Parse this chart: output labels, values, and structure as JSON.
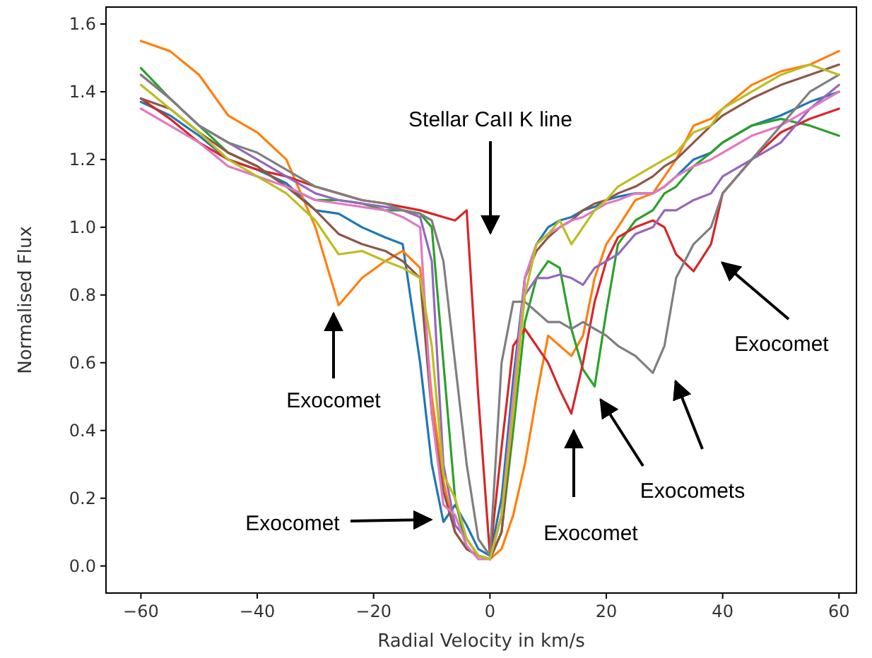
{
  "chart_data": {
    "type": "line",
    "xlabel": "Radial Velocity in km/s",
    "ylabel": "Normalised Flux",
    "annotations": [
      "Stellar CaII K line",
      "Exocomet",
      "Exocomet",
      "Exocomet",
      "Exocomets",
      "Exocomet"
    ],
    "x": [
      -60,
      -55,
      -50,
      -45,
      -40,
      -35,
      -30,
      -26,
      -22,
      -18,
      -15,
      -12,
      -10,
      -8,
      -6,
      -4,
      -2,
      0,
      2,
      4,
      6,
      8,
      10,
      12,
      14,
      16,
      18,
      20,
      22,
      25,
      28,
      30,
      32,
      35,
      38,
      40,
      45,
      50,
      55,
      60
    ],
    "xlim": [
      -66,
      63
    ],
    "xticks": [
      -60,
      -40,
      -20,
      0,
      20,
      40,
      60
    ],
    "ylim": [
      -0.08,
      1.65
    ],
    "yticks": [
      {
        "value": 0,
        "label": "0.0"
      },
      {
        "value": 0.2,
        "label": "0.2"
      },
      {
        "value": 0.4,
        "label": "0.4"
      },
      {
        "value": 0.6,
        "label": "0.6"
      },
      {
        "value": 0.8,
        "label": "0.8"
      },
      {
        "value": 1.0,
        "label": "1.0"
      },
      {
        "value": 1.2,
        "label": "1.2"
      },
      {
        "value": 1.4,
        "label": "1.4"
      },
      {
        "value": 1.6,
        "label": "1.6"
      }
    ],
    "grid": false,
    "marker": "none",
    "line_style": "solid",
    "series": [
      {
        "color": "#1f77b4",
        "values": [
          1.37,
          1.33,
          1.27,
          1.2,
          1.17,
          1.13,
          1.05,
          1.04,
          1.0,
          0.97,
          0.95,
          0.6,
          0.3,
          0.13,
          0.18,
          0.12,
          0.05,
          0.03,
          0.2,
          0.55,
          0.85,
          0.95,
          1.0,
          1.02,
          1.03,
          1.05,
          1.06,
          1.08,
          1.09,
          1.1,
          1.1,
          1.12,
          1.15,
          1.2,
          1.22,
          1.25,
          1.3,
          1.33,
          1.37,
          1.4
        ]
      },
      {
        "color": "#ff7f0e",
        "values": [
          1.55,
          1.52,
          1.45,
          1.33,
          1.28,
          1.2,
          1.0,
          0.77,
          0.85,
          0.9,
          0.93,
          0.88,
          0.5,
          0.25,
          0.1,
          0.05,
          0.03,
          0.02,
          0.05,
          0.15,
          0.3,
          0.5,
          0.68,
          0.65,
          0.62,
          0.68,
          0.85,
          0.95,
          1.0,
          1.08,
          1.1,
          1.15,
          1.2,
          1.3,
          1.32,
          1.35,
          1.42,
          1.46,
          1.48,
          1.52
        ]
      },
      {
        "color": "#2ca02c",
        "values": [
          1.47,
          1.38,
          1.3,
          1.22,
          1.18,
          1.12,
          1.08,
          1.08,
          1.07,
          1.05,
          1.05,
          1.04,
          1.0,
          0.6,
          0.2,
          0.05,
          0.03,
          0.02,
          0.1,
          0.4,
          0.72,
          0.85,
          0.9,
          0.88,
          0.7,
          0.58,
          0.53,
          0.75,
          0.95,
          1.02,
          1.05,
          1.1,
          1.12,
          1.18,
          1.22,
          1.25,
          1.3,
          1.32,
          1.3,
          1.27
        ]
      },
      {
        "color": "#d62728",
        "values": [
          1.38,
          1.32,
          1.25,
          1.2,
          1.17,
          1.15,
          1.12,
          1.1,
          1.08,
          1.07,
          1.06,
          1.05,
          1.04,
          1.03,
          1.02,
          1.05,
          0.5,
          0.03,
          0.35,
          0.65,
          0.7,
          0.65,
          0.6,
          0.52,
          0.45,
          0.6,
          0.78,
          0.9,
          0.97,
          1.0,
          1.02,
          1.0,
          0.92,
          0.87,
          0.95,
          1.1,
          1.2,
          1.28,
          1.32,
          1.35
        ]
      },
      {
        "color": "#9467bd",
        "values": [
          1.45,
          1.38,
          1.3,
          1.25,
          1.2,
          1.15,
          1.1,
          1.08,
          1.07,
          1.06,
          1.05,
          1.03,
          0.9,
          0.3,
          0.12,
          0.08,
          0.03,
          0.02,
          0.15,
          0.5,
          0.8,
          0.85,
          0.85,
          0.86,
          0.85,
          0.83,
          0.88,
          0.9,
          0.92,
          0.98,
          1.0,
          1.05,
          1.05,
          1.08,
          1.1,
          1.15,
          1.2,
          1.25,
          1.35,
          1.42
        ]
      },
      {
        "color": "#8c564b",
        "values": [
          1.38,
          1.35,
          1.28,
          1.22,
          1.18,
          1.12,
          1.05,
          0.98,
          0.95,
          0.93,
          0.9,
          0.85,
          0.45,
          0.22,
          0.1,
          0.05,
          0.03,
          0.02,
          0.1,
          0.45,
          0.85,
          0.93,
          0.97,
          1.0,
          1.02,
          1.05,
          1.07,
          1.08,
          1.1,
          1.12,
          1.15,
          1.18,
          1.2,
          1.25,
          1.3,
          1.33,
          1.38,
          1.42,
          1.45,
          1.48
        ]
      },
      {
        "color": "#e377c2",
        "values": [
          1.35,
          1.3,
          1.25,
          1.18,
          1.15,
          1.12,
          1.08,
          1.07,
          1.06,
          1.05,
          1.03,
          1.0,
          0.45,
          0.18,
          0.15,
          0.06,
          0.02,
          0.02,
          0.15,
          0.5,
          0.85,
          0.95,
          0.98,
          1.0,
          1.02,
          1.03,
          1.05,
          1.07,
          1.08,
          1.1,
          1.1,
          1.12,
          1.15,
          1.18,
          1.2,
          1.22,
          1.27,
          1.3,
          1.35,
          1.4
        ]
      },
      {
        "color": "#7f7f7f",
        "values": [
          1.45,
          1.38,
          1.3,
          1.25,
          1.22,
          1.17,
          1.12,
          1.1,
          1.08,
          1.07,
          1.05,
          1.04,
          1.02,
          0.9,
          0.6,
          0.3,
          0.08,
          0.03,
          0.6,
          0.78,
          0.78,
          0.75,
          0.72,
          0.72,
          0.7,
          0.72,
          0.7,
          0.68,
          0.65,
          0.62,
          0.57,
          0.65,
          0.85,
          0.95,
          1.0,
          1.1,
          1.2,
          1.3,
          1.4,
          1.45
        ]
      },
      {
        "color": "#bcbd22",
        "values": [
          1.42,
          1.35,
          1.28,
          1.2,
          1.15,
          1.1,
          1.02,
          0.92,
          0.93,
          0.9,
          0.88,
          0.85,
          0.65,
          0.27,
          0.2,
          0.08,
          0.03,
          0.02,
          0.15,
          0.45,
          0.8,
          0.95,
          0.98,
          1.02,
          0.95,
          1.0,
          1.05,
          1.08,
          1.12,
          1.15,
          1.18,
          1.2,
          1.22,
          1.28,
          1.3,
          1.35,
          1.4,
          1.45,
          1.48,
          1.45
        ]
      }
    ]
  }
}
